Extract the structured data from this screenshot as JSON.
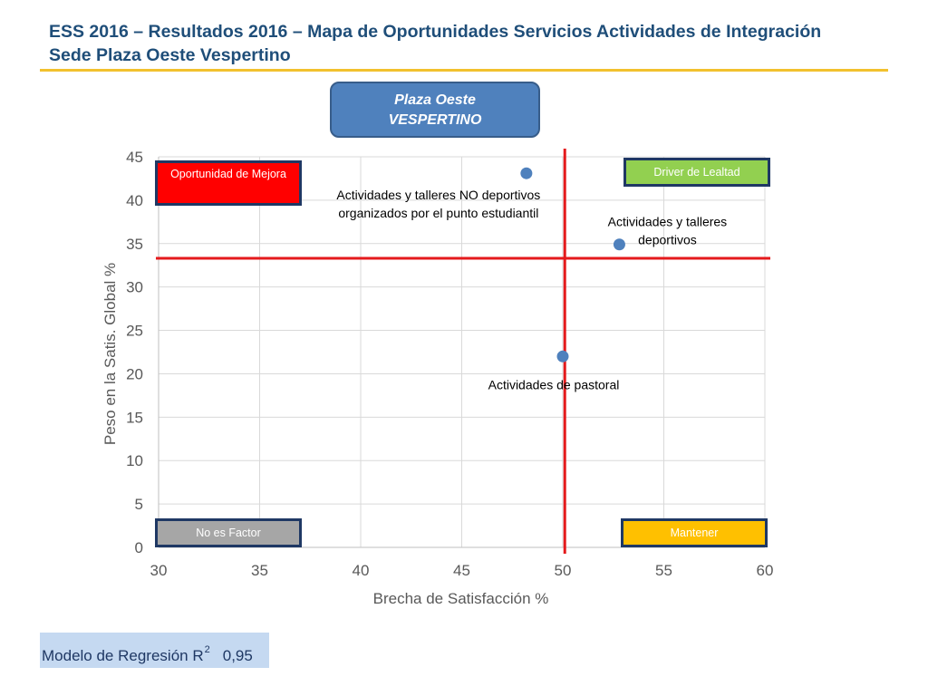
{
  "header": {
    "title_line1": "ESS 2016 – Resultados 2016 – Mapa de Oportunidades Servicios Actividades de Integración",
    "title_line2": "Sede Plaza Oeste Vespertino"
  },
  "sede_box": {
    "line1": "Plaza Oeste",
    "line2": "VESPERTINO"
  },
  "quadrants": {
    "top_left": "Oportunidad de Mejora",
    "top_right": "Driver de Lealtad",
    "bottom_left": "No es Factor",
    "bottom_right": "Mantener"
  },
  "regression": {
    "label": "Modelo de Regresión R",
    "superscript": "2",
    "value": "0,95"
  },
  "colors": {
    "point": "#4f81bd",
    "reference_line": "#e41a1c",
    "grid": "#d9d9d9",
    "axis_text": "#595959"
  },
  "chart_data": {
    "type": "scatter",
    "xlabel": "Brecha de Satisfacción %",
    "ylabel": "Peso en la Satis. Global %",
    "xlim": [
      30,
      60
    ],
    "ylim": [
      0,
      45
    ],
    "xticks": [
      "30",
      "35",
      "40",
      "45",
      "50",
      "55",
      "60"
    ],
    "yticks": [
      "0",
      "5",
      "10",
      "15",
      "20",
      "25",
      "30",
      "35",
      "40",
      "45"
    ],
    "grid": true,
    "reference_lines": {
      "x": 50.1,
      "y": 33.3
    },
    "points": [
      {
        "x": 48.2,
        "y": 43.1,
        "label_lines": [
          "Actividades y talleres NO deportivos",
          "organizados por el punto estudiantil"
        ]
      },
      {
        "x": 52.8,
        "y": 34.9,
        "label_lines": [
          "Actividades y talleres",
          "deportivos"
        ]
      },
      {
        "x": 50.0,
        "y": 22.0,
        "label_lines": [
          "Actividades de pastoral"
        ]
      }
    ]
  }
}
